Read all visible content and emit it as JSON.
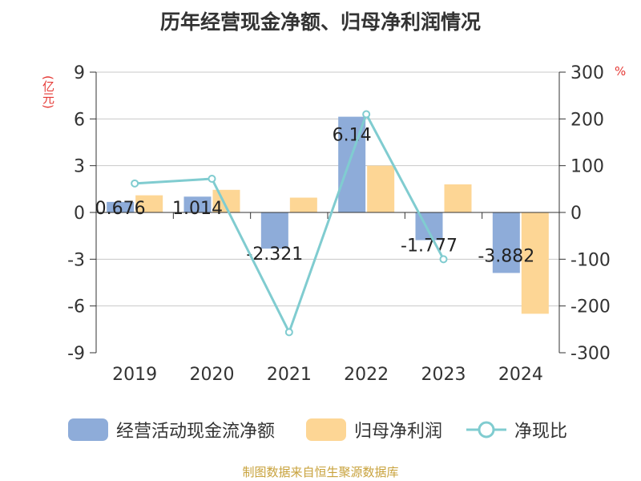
{
  "title": "历年经营现金净额、归母净利润情况",
  "left_unit": "(亿元)",
  "right_unit": "%",
  "source": "制图数据来自恒生聚源数据库",
  "colors": {
    "cash": "#8eacd9",
    "profit": "#fdd695",
    "ratio": "#80ccd0",
    "axis": "#333333",
    "grid": "#c8c8c8"
  },
  "chart_data": {
    "type": "bar",
    "title": "历年经营现金净额、归母净利润情况",
    "categories": [
      "2019",
      "2020",
      "2021",
      "2022",
      "2023",
      "2024"
    ],
    "left_axis": {
      "label": "(亿元)",
      "ylim": [
        -9,
        9
      ],
      "ticks": [
        9,
        6,
        3,
        0,
        -3,
        -6,
        -9
      ]
    },
    "right_axis": {
      "label": "%",
      "ylim": [
        -300,
        300
      ],
      "ticks": [
        300,
        200,
        100,
        0,
        -100,
        -200,
        -300
      ]
    },
    "series": [
      {
        "name": "经营活动现金流净额",
        "type": "bar",
        "axis": "left",
        "values": [
          0.676,
          1.014,
          -2.321,
          6.14,
          -1.777,
          -3.882
        ],
        "labels": [
          "0.676",
          "1.014",
          "-2.321",
          "6.14",
          "-1.777",
          "-3.882"
        ]
      },
      {
        "name": "归母净利润",
        "type": "bar",
        "axis": "left",
        "values": [
          1.1,
          1.45,
          0.95,
          3.0,
          1.8,
          -6.5
        ]
      },
      {
        "name": "净现比",
        "type": "line",
        "axis": "right",
        "values": [
          62,
          72,
          -256,
          210,
          -100,
          null
        ]
      }
    ],
    "grid": true,
    "legend_position": "bottom"
  }
}
